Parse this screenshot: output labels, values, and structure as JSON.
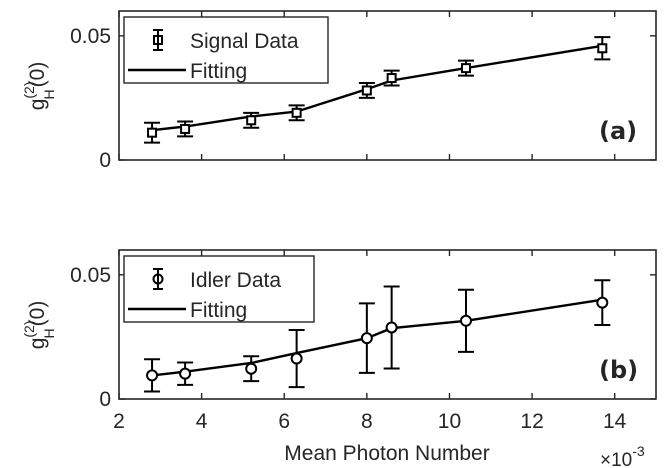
{
  "x_tick_labels": [
    "2",
    "4",
    "6",
    "8",
    "10",
    "12",
    "14"
  ],
  "y_tick_labels": [
    "0",
    "0.05"
  ],
  "x_exponent": "×10",
  "x_exponent_power": "-3",
  "xlabel": "Mean Photon Number",
  "chart_data": [
    {
      "type": "scatter",
      "panel_label": "(a)",
      "ylabel_base": "g",
      "ylabel_superscript": "(2)",
      "ylabel_subscript": "H",
      "ylabel_suffix": "(0)",
      "xlim": [
        2,
        15
      ],
      "ylim": [
        0,
        0.06
      ],
      "x_scale_note": "×10^-3",
      "legend_position": "top-left",
      "series": [
        {
          "name": "Signal Data",
          "marker": "square",
          "x": [
            2.8,
            3.6,
            5.2,
            6.3,
            8.0,
            8.6,
            10.4,
            13.7
          ],
          "y": [
            0.011,
            0.0125,
            0.016,
            0.019,
            0.028,
            0.033,
            0.037,
            0.045
          ],
          "err": [
            0.004,
            0.003,
            0.003,
            0.003,
            0.003,
            0.003,
            0.003,
            0.0045
          ]
        },
        {
          "name": "Fitting",
          "style": "line",
          "x": [
            2.8,
            3.6,
            5.2,
            6.3,
            8.0,
            8.6,
            10.4,
            13.7
          ],
          "y": [
            0.012,
            0.0135,
            0.0175,
            0.0195,
            0.0285,
            0.032,
            0.037,
            0.046
          ]
        }
      ]
    },
    {
      "type": "scatter",
      "panel_label": "(b)",
      "ylabel_base": "g",
      "ylabel_superscript": "(2)",
      "ylabel_subscript": "H",
      "ylabel_suffix": "(0)",
      "xlim": [
        2,
        15
      ],
      "ylim": [
        0,
        0.06
      ],
      "x_scale_note": "×10^-3",
      "legend_position": "top-left",
      "series": [
        {
          "name": "Idler Data",
          "marker": "circle",
          "x": [
            2.8,
            3.6,
            5.2,
            6.3,
            8.0,
            8.6,
            10.4,
            13.7
          ],
          "y": [
            0.0095,
            0.0102,
            0.0122,
            0.0163,
            0.0245,
            0.0288,
            0.0315,
            0.0388
          ],
          "err": [
            0.0065,
            0.0045,
            0.005,
            0.0115,
            0.014,
            0.0165,
            0.0125,
            0.009
          ]
        },
        {
          "name": "Fitting",
          "style": "line",
          "x": [
            2.8,
            3.6,
            5.2,
            6.3,
            8.0,
            8.6,
            10.4,
            13.7
          ],
          "y": [
            0.0095,
            0.011,
            0.0145,
            0.0185,
            0.0245,
            0.0285,
            0.0315,
            0.04
          ]
        }
      ]
    }
  ]
}
